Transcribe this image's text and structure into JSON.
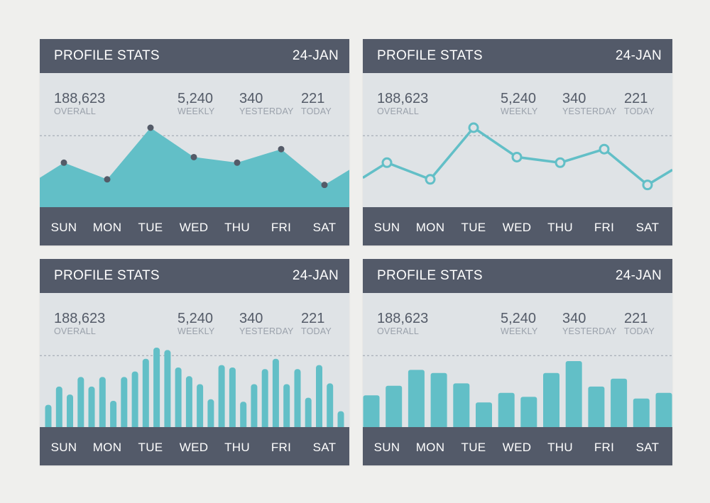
{
  "cards": [
    {
      "title": "PROFILE STATS",
      "date": "24-JAN",
      "stats": {
        "overall": {
          "value": "188,623",
          "label": "OVERALL"
        },
        "weekly": {
          "value": "5,240",
          "label": "WEEKLY"
        },
        "yesterday": {
          "value": "340",
          "label": "YESTERDAY"
        },
        "today": {
          "value": "221",
          "label": "TODAY"
        }
      },
      "days": [
        "SUN",
        "MON",
        "TUE",
        "WED",
        "THU",
        "FRI",
        "SAT"
      ]
    },
    {
      "title": "PROFILE STATS",
      "date": "24-JAN",
      "stats": {
        "overall": {
          "value": "188,623",
          "label": "OVERALL"
        },
        "weekly": {
          "value": "5,240",
          "label": "WEEKLY"
        },
        "yesterday": {
          "value": "340",
          "label": "YESTERDAY"
        },
        "today": {
          "value": "221",
          "label": "TODAY"
        }
      },
      "days": [
        "SUN",
        "MON",
        "TUE",
        "WED",
        "THU",
        "FRI",
        "SAT"
      ]
    },
    {
      "title": "PROFILE STATS",
      "date": "24-JAN",
      "stats": {
        "overall": {
          "value": "188,623",
          "label": "OVERALL"
        },
        "weekly": {
          "value": "5,240",
          "label": "WEEKLY"
        },
        "yesterday": {
          "value": "340",
          "label": "YESTERDAY"
        },
        "today": {
          "value": "221",
          "label": "TODAY"
        }
      },
      "days": [
        "SUN",
        "MON",
        "TUE",
        "WED",
        "THU",
        "FRI",
        "SAT"
      ]
    },
    {
      "title": "PROFILE STATS",
      "date": "24-JAN",
      "stats": {
        "overall": {
          "value": "188,623",
          "label": "OVERALL"
        },
        "weekly": {
          "value": "5,240",
          "label": "WEEKLY"
        },
        "yesterday": {
          "value": "340",
          "label": "YESTERDAY"
        },
        "today": {
          "value": "221",
          "label": "TODAY"
        }
      },
      "days": [
        "SUN",
        "MON",
        "TUE",
        "WED",
        "THU",
        "FRI",
        "SAT"
      ]
    }
  ],
  "colors": {
    "accent": "#62bfc7",
    "header": "#535a69",
    "panel": "#dfe3e6",
    "marker": "#545b68",
    "reference_line": "#9aa1ab"
  },
  "chart_data": [
    {
      "type": "area",
      "categories": [
        "SUN",
        "MON",
        "TUE",
        "WED",
        "THU",
        "FRI",
        "SAT"
      ],
      "values": [
        56,
        35,
        100,
        63,
        56,
        73,
        28
      ],
      "edge_values": [
        37,
        47
      ],
      "ylim": [
        0,
        100
      ],
      "reference_line": 90,
      "markers": true
    },
    {
      "type": "line",
      "categories": [
        "SUN",
        "MON",
        "TUE",
        "WED",
        "THU",
        "FRI",
        "SAT"
      ],
      "values": [
        56,
        35,
        100,
        63,
        56,
        73,
        28
      ],
      "edge_values": [
        37,
        47
      ],
      "ylim": [
        0,
        100
      ],
      "reference_line": 90,
      "markers": true
    },
    {
      "type": "bar",
      "values": [
        28,
        51,
        41,
        63,
        51,
        63,
        33,
        63,
        70,
        86,
        100,
        97,
        75,
        64,
        54,
        35,
        78,
        75,
        32,
        54,
        73,
        86,
        54,
        73,
        37,
        78,
        55,
        20
      ],
      "ylim": [
        0,
        100
      ],
      "reference_line": 90
    },
    {
      "type": "bar",
      "values": [
        40,
        52,
        72,
        68,
        55,
        31,
        43,
        38,
        68,
        83,
        51,
        61,
        36,
        43
      ],
      "ylim": [
        0,
        100
      ],
      "reference_line": 90
    }
  ]
}
